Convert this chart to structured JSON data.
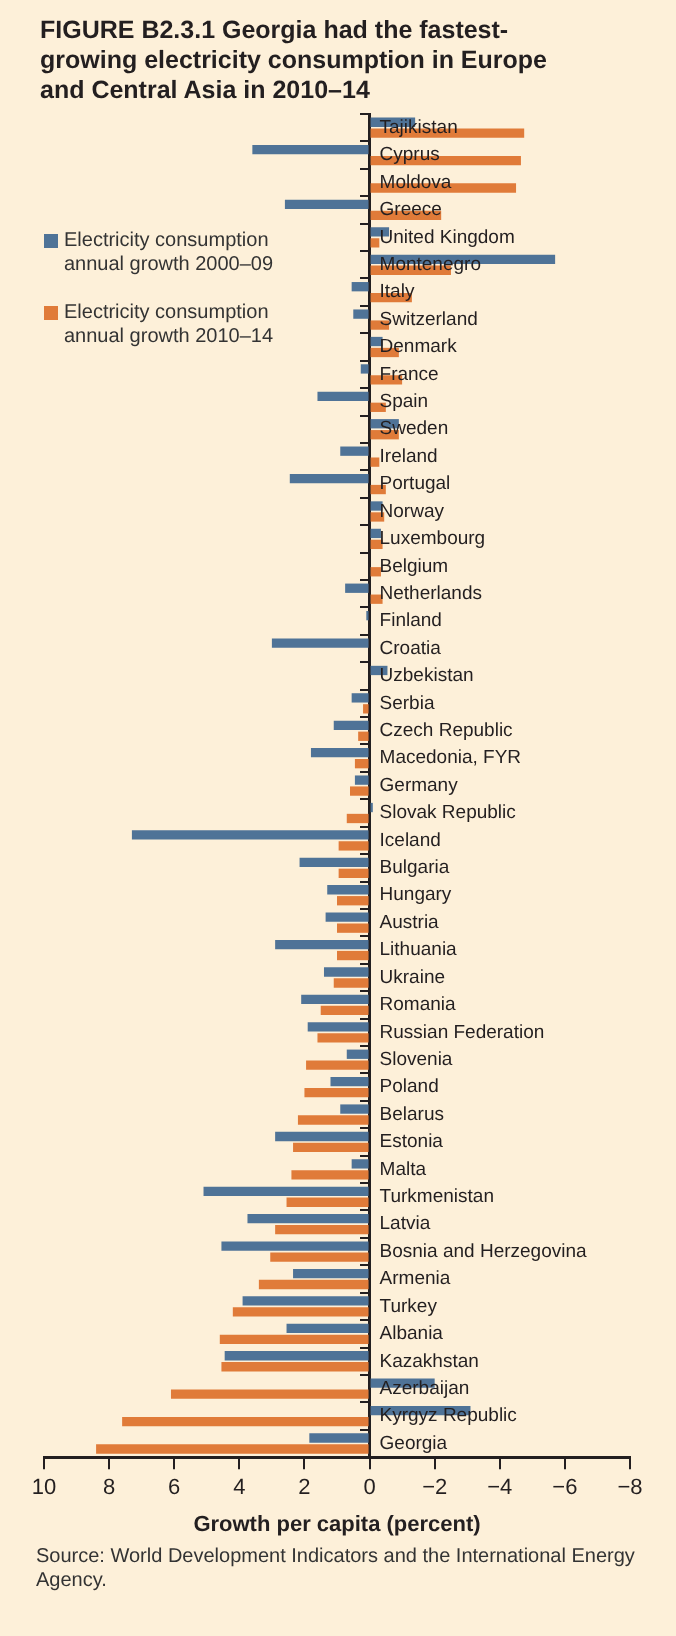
{
  "chart_data": {
    "type": "bar",
    "orientation": "horizontal",
    "title": "FIGURE B2.3.1 Georgia had the fastest-growing electricity consumption in Europe and Central Asia in 2010–14",
    "xlabel": "Growth per capita (percent)",
    "annotations": [
      "Source: World Development Indicators and the International Energy Agency."
    ],
    "categories": [
      "Tajikistan",
      "Cyprus",
      "Moldova",
      "Greece",
      "United Kingdom",
      "Montenegro",
      "Italy",
      "Switzerland",
      "Denmark",
      "France",
      "Spain",
      "Sweden",
      "Ireland",
      "Portugal",
      "Norway",
      "Luxembourg",
      "Belgium",
      "Netherlands",
      "Finland",
      "Croatia",
      "Uzbekistan",
      "Serbia",
      "Czech Republic",
      "Macedonia, FYR",
      "Germany",
      "Slovak Republic",
      "Iceland",
      "Bulgaria",
      "Hungary",
      "Austria",
      "Lithuania",
      "Ukraine",
      "Romania",
      "Russian Federation",
      "Slovenia",
      "Poland",
      "Belarus",
      "Estonia",
      "Malta",
      "Turkmenistan",
      "Latvia",
      "Bosnia and Herzegovina",
      "Armenia",
      "Turkey",
      "Albania",
      "Kazakhstan",
      "Azerbaijan",
      "Kyrgyz Republic",
      "Georgia"
    ],
    "series": [
      {
        "name": "Electricity consumption annual growth 2000–09",
        "color": "#4f7397",
        "values": [
          -1.4,
          3.6,
          0,
          2.6,
          -0.6,
          -5.7,
          0.55,
          0.5,
          -0.4,
          0.27,
          1.6,
          -0.9,
          0.9,
          2.45,
          -0.4,
          -0.35,
          0,
          0.75,
          0.1,
          3.0,
          -0.55,
          0.55,
          1.1,
          1.8,
          0.45,
          -0.1,
          7.3,
          2.15,
          1.3,
          1.35,
          2.9,
          1.4,
          2.1,
          1.9,
          0.7,
          1.2,
          0.9,
          2.9,
          0.55,
          5.1,
          3.75,
          4.55,
          2.35,
          3.9,
          2.55,
          4.45,
          -2.0,
          -3.1,
          1.85
        ]
      },
      {
        "name": "Electricity consumption annual growth 2010–14",
        "color": "#e07b39",
        "values": [
          -4.75,
          -4.65,
          -4.5,
          -2.2,
          -0.3,
          -2.5,
          -1.3,
          -0.6,
          -0.9,
          -1.0,
          -0.5,
          -0.9,
          -0.3,
          -0.5,
          -0.45,
          -0.4,
          -0.35,
          -0.4,
          0,
          0,
          0,
          0.2,
          0.35,
          0.45,
          0.6,
          0.7,
          0.95,
          0.95,
          1.0,
          1.0,
          1.0,
          1.1,
          1.5,
          1.6,
          1.95,
          2.0,
          2.2,
          2.35,
          2.4,
          2.55,
          2.9,
          3.05,
          3.4,
          4.2,
          4.6,
          4.55,
          6.1,
          7.6,
          8.4
        ]
      }
    ],
    "xlim": [
      10,
      -8
    ],
    "xticks": [
      10,
      8,
      6,
      4,
      2,
      0,
      {
        "value": -2,
        "label": "−2"
      },
      {
        "value": -4,
        "label": "−4"
      },
      {
        "value": -6,
        "label": "−6"
      },
      {
        "value": -8,
        "label": "−8"
      }
    ],
    "legend": "top left"
  }
}
